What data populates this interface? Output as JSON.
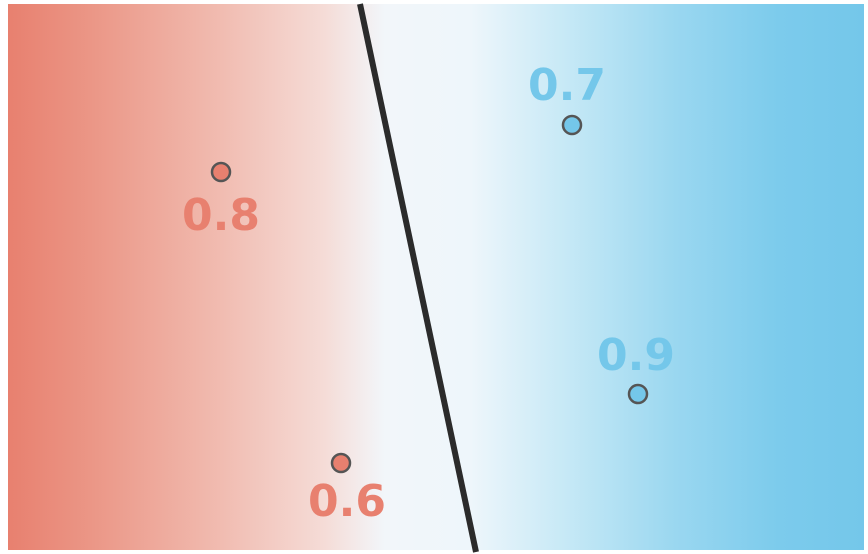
{
  "colors": {
    "red_class": "#e8806f",
    "blue_class": "#74c7ea",
    "neutral": "#f2f6fa",
    "boundary": "#2b2b2b",
    "point_stroke": "#555555"
  },
  "points": [
    {
      "class": "red",
      "label": "0.8",
      "label_position": "below"
    },
    {
      "class": "red",
      "label": "0.6",
      "label_position": "below"
    },
    {
      "class": "blue",
      "label": "0.7",
      "label_position": "above"
    },
    {
      "class": "blue",
      "label": "0.9",
      "label_position": "above"
    }
  ]
}
